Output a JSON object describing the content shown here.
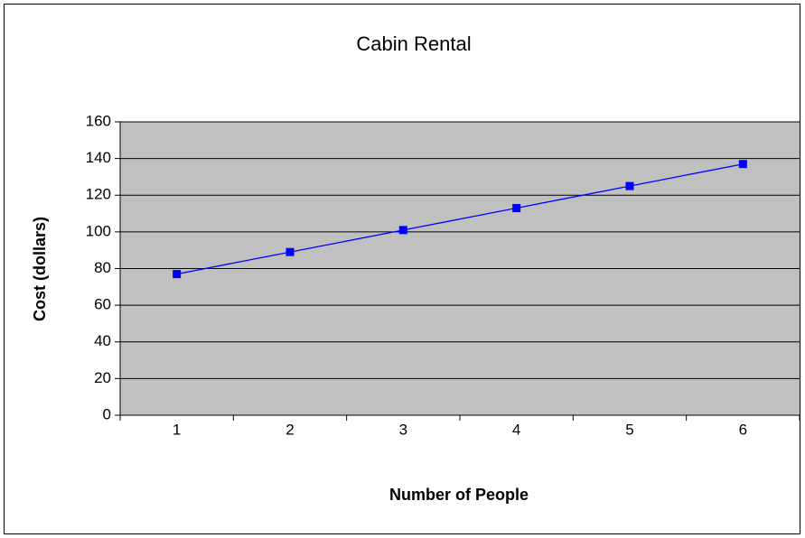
{
  "chart_data": {
    "type": "line",
    "title": "Cabin Rental",
    "x_label": "Number of People",
    "y_label": "Cost (dollars)",
    "categories": [
      "1",
      "2",
      "3",
      "4",
      "5",
      "6"
    ],
    "values": [
      77,
      89,
      101,
      113,
      125,
      137
    ],
    "color": "#0000ff",
    "plot_background": "#c0c0c0",
    "ylim": [
      0,
      160
    ],
    "yticks": [
      0,
      20,
      40,
      60,
      80,
      100,
      120,
      140,
      160
    ],
    "grid": true
  }
}
